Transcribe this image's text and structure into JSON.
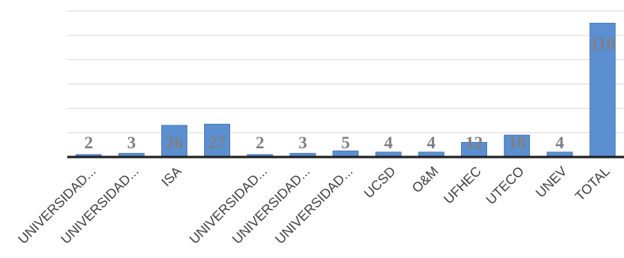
{
  "chart_data": {
    "type": "bar",
    "categories": [
      "UNIVERSIDAD...",
      "UNIVERSIDAD...",
      "ISA",
      "",
      "UNIVERSIDAD...",
      "UNIVERSIDAD...",
      "UNIVERSIDAD...",
      "UCSD",
      "O&M",
      "UFHEC",
      "UTECO",
      "UNEV",
      "TOTAL"
    ],
    "values": [
      2,
      3,
      26,
      27,
      2,
      3,
      5,
      4,
      4,
      12,
      18,
      4,
      110
    ],
    "title": "",
    "xlabel": "",
    "ylabel": "",
    "ylim": [
      0,
      120
    ],
    "grid": true,
    "legend": "none",
    "colors": {
      "bar": "#5b8fd1",
      "bar_stroke": "#4a79b6",
      "value_label": "#7f7f7f",
      "grid": "#d9d9d9",
      "axis": "#1f1f1f"
    }
  }
}
